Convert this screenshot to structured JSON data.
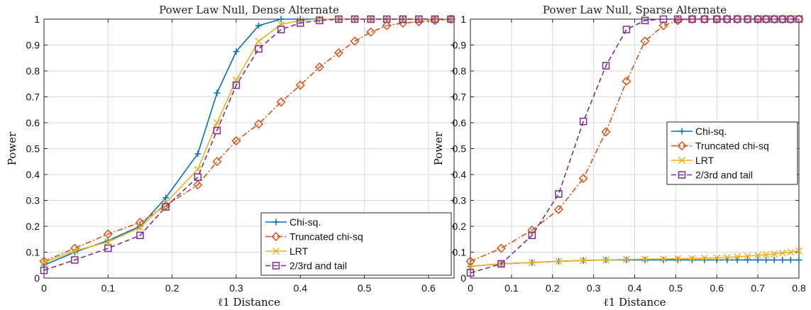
{
  "colors": {
    "chi_sq": "#0072BD",
    "truncated": "#D95319",
    "lrt": "#EDB120",
    "tail": "#7E2F8E"
  },
  "chart_data": [
    {
      "type": "line",
      "title": "Power Law Null, Dense Alternate",
      "xlabel": "ℓ1 Distance",
      "ylabel": "Power",
      "xlim": [
        0,
        0.64
      ],
      "ylim": [
        0,
        1
      ],
      "xticks": [
        "0",
        "0.1",
        "0.2",
        "0.3",
        "0.4",
        "0.5",
        "0.6"
      ],
      "yticks": [
        "0",
        "0.1",
        "0.2",
        "0.3",
        "0.4",
        "0.5",
        "0.6",
        "0.7",
        "0.8",
        "0.9",
        "1"
      ],
      "grid": true,
      "legend_position": "bottom-right",
      "series": [
        {
          "name": "Chi-sq.",
          "color_key": "chi_sq",
          "marker": "plus",
          "dash": "solid",
          "x": [
            0,
            0.048,
            0.1,
            0.15,
            0.19,
            0.24,
            0.27,
            0.3,
            0.335,
            0.37,
            0.4,
            0.43,
            0.46,
            0.485,
            0.51,
            0.535,
            0.56,
            0.585,
            0.61,
            0.635
          ],
          "y": [
            0.05,
            0.1,
            0.145,
            0.2,
            0.31,
            0.48,
            0.715,
            0.875,
            0.975,
            1.0,
            1.0,
            1.0,
            1.0,
            1.0,
            1.0,
            1.0,
            1.0,
            1.0,
            1.0,
            1.0
          ]
        },
        {
          "name": "Truncated chi-sq",
          "color_key": "truncated",
          "marker": "diamond",
          "dash": "dashdot",
          "x": [
            0,
            0.048,
            0.1,
            0.15,
            0.19,
            0.24,
            0.27,
            0.3,
            0.335,
            0.37,
            0.4,
            0.43,
            0.46,
            0.485,
            0.51,
            0.535,
            0.56,
            0.585,
            0.61,
            0.635
          ],
          "y": [
            0.065,
            0.115,
            0.17,
            0.215,
            0.28,
            0.36,
            0.45,
            0.53,
            0.595,
            0.68,
            0.745,
            0.815,
            0.87,
            0.915,
            0.95,
            0.975,
            0.985,
            0.99,
            0.995,
            1.0
          ]
        },
        {
          "name": "LRT",
          "color_key": "lrt",
          "marker": "x",
          "dash": "solid",
          "x": [
            0,
            0.048,
            0.1,
            0.15,
            0.19,
            0.24,
            0.27,
            0.3,
            0.335,
            0.37,
            0.4,
            0.43,
            0.46,
            0.485,
            0.51,
            0.535,
            0.56,
            0.585,
            0.61,
            0.635
          ],
          "y": [
            0.06,
            0.105,
            0.14,
            0.195,
            0.29,
            0.42,
            0.6,
            0.765,
            0.915,
            0.98,
            0.995,
            1.0,
            1.0,
            1.0,
            1.0,
            1.0,
            1.0,
            1.0,
            1.0,
            1.0
          ]
        },
        {
          "name": "2/3rd and tail",
          "color_key": "tail",
          "marker": "square",
          "dash": "dashed",
          "x": [
            0,
            0.048,
            0.1,
            0.15,
            0.19,
            0.24,
            0.27,
            0.3,
            0.335,
            0.37,
            0.4,
            0.43,
            0.46,
            0.485,
            0.51,
            0.535,
            0.56,
            0.585,
            0.61,
            0.635
          ],
          "y": [
            0.03,
            0.07,
            0.115,
            0.165,
            0.275,
            0.39,
            0.57,
            0.745,
            0.885,
            0.96,
            0.985,
            0.995,
            1.0,
            1.0,
            1.0,
            1.0,
            1.0,
            1.0,
            1.0,
            1.0
          ]
        }
      ]
    },
    {
      "type": "line",
      "title": "Power Law Null, Sparse Alternate",
      "xlabel": "ℓ1 Distance",
      "ylabel": "Power",
      "xlim": [
        0,
        0.8
      ],
      "ylim": [
        0,
        1
      ],
      "xticks": [
        "0",
        "0.1",
        "0.2",
        "0.3",
        "0.4",
        "0.5",
        "0.6",
        "0.7",
        "0.8"
      ],
      "yticks": [
        "0",
        "0.1",
        "0.2",
        "0.3",
        "0.4",
        "0.5",
        "0.6",
        "0.7",
        "0.8",
        "0.9",
        "1"
      ],
      "grid": true,
      "legend_position": "middle-right",
      "series": [
        {
          "name": "Chi-sq.",
          "color_key": "chi_sq",
          "marker": "plus",
          "dash": "solid",
          "x": [
            0,
            0.075,
            0.15,
            0.215,
            0.275,
            0.33,
            0.38,
            0.425,
            0.47,
            0.505,
            0.54,
            0.57,
            0.6,
            0.625,
            0.65,
            0.675,
            0.7,
            0.72,
            0.74,
            0.76,
            0.78,
            0.8
          ],
          "y": [
            0.045,
            0.055,
            0.06,
            0.065,
            0.068,
            0.07,
            0.07,
            0.07,
            0.07,
            0.07,
            0.07,
            0.07,
            0.07,
            0.07,
            0.07,
            0.07,
            0.07,
            0.07,
            0.07,
            0.07,
            0.07,
            0.07
          ]
        },
        {
          "name": "Truncated chi-sq",
          "color_key": "truncated",
          "marker": "diamond",
          "dash": "dashdot",
          "x": [
            0,
            0.075,
            0.15,
            0.215,
            0.275,
            0.33,
            0.38,
            0.425,
            0.47,
            0.505,
            0.54,
            0.57,
            0.6,
            0.625,
            0.65,
            0.675,
            0.7,
            0.72,
            0.74,
            0.76,
            0.78,
            0.8
          ],
          "y": [
            0.065,
            0.115,
            0.185,
            0.265,
            0.385,
            0.565,
            0.76,
            0.915,
            0.975,
            0.995,
            1.0,
            1.0,
            1.0,
            1.0,
            1.0,
            1.0,
            1.0,
            1.0,
            1.0,
            1.0,
            1.0,
            1.0
          ]
        },
        {
          "name": "LRT",
          "color_key": "lrt",
          "marker": "x",
          "dash": "solid",
          "x": [
            0,
            0.075,
            0.15,
            0.215,
            0.275,
            0.33,
            0.38,
            0.425,
            0.47,
            0.505,
            0.54,
            0.57,
            0.6,
            0.625,
            0.65,
            0.675,
            0.7,
            0.72,
            0.74,
            0.76,
            0.78,
            0.8
          ],
          "y": [
            0.045,
            0.055,
            0.06,
            0.065,
            0.068,
            0.07,
            0.072,
            0.073,
            0.074,
            0.075,
            0.076,
            0.077,
            0.078,
            0.08,
            0.082,
            0.085,
            0.088,
            0.09,
            0.093,
            0.097,
            0.1,
            0.105
          ]
        },
        {
          "name": "2/3rd and tail",
          "color_key": "tail",
          "marker": "square",
          "dash": "dashed",
          "x": [
            0,
            0.075,
            0.15,
            0.215,
            0.275,
            0.33,
            0.38,
            0.425,
            0.47,
            0.505,
            0.54,
            0.57,
            0.6,
            0.625,
            0.65,
            0.675,
            0.7,
            0.72,
            0.74,
            0.76,
            0.78,
            0.8
          ],
          "y": [
            0.02,
            0.055,
            0.165,
            0.325,
            0.605,
            0.82,
            0.96,
            0.995,
            1.0,
            1.0,
            1.0,
            1.0,
            1.0,
            1.0,
            1.0,
            1.0,
            1.0,
            1.0,
            1.0,
            1.0,
            1.0,
            1.0
          ]
        }
      ]
    }
  ]
}
